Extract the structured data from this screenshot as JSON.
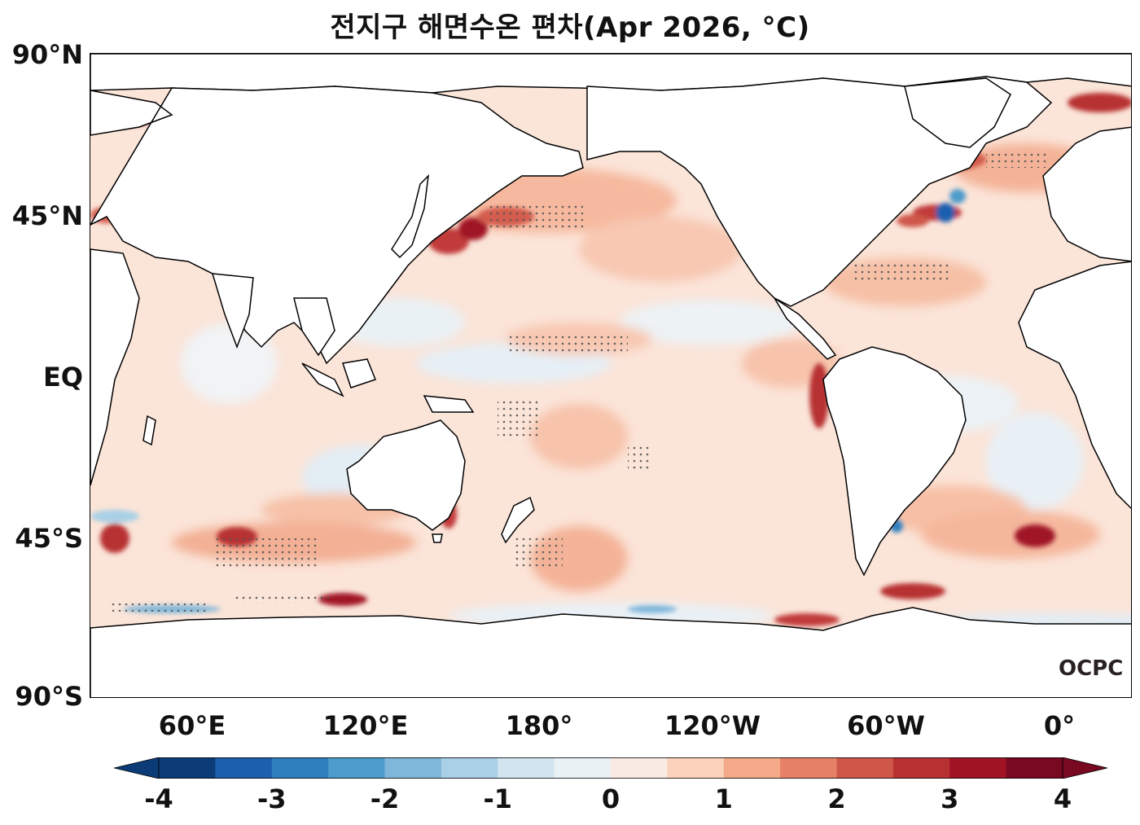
{
  "title": "전지구 해면수온 편차(Apr 2026, °C)",
  "logo_text": "OCPC",
  "lat_labels": [
    "90°N",
    "45°N",
    "EQ",
    "45°S",
    "90°S"
  ],
  "lon_labels": [
    "60°E",
    "120°E",
    "180°",
    "120°W",
    "60°W",
    "0°"
  ],
  "colorbar": {
    "tick_labels": [
      "-4",
      "-3",
      "-2",
      "-1",
      "0",
      "1",
      "2",
      "3",
      "4"
    ],
    "colors": [
      "#0b3c78",
      "#1c5fae",
      "#2f7fbf",
      "#4d9bcb",
      "#7fb7da",
      "#a9d0e6",
      "#d3e5f1",
      "#ebf2f6",
      "#f9ebe3",
      "#fcd2bd",
      "#f4a989",
      "#e68066",
      "#cf5749",
      "#b73133",
      "#a01425",
      "#790822"
    ],
    "extend": "both",
    "min": -4,
    "max": 4,
    "step": 0.5
  },
  "map": {
    "projection": "plate-carree",
    "central_longitude": 180,
    "lon_range": [
      24,
      384
    ],
    "lat_range": [
      -90,
      90
    ],
    "stippling": "significant anomalies marked with dots"
  }
}
